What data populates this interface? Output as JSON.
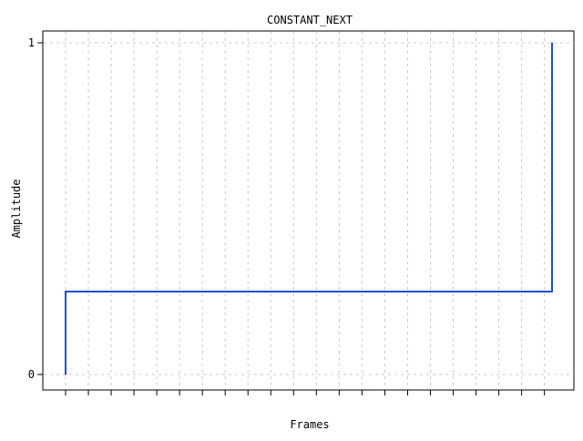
{
  "chart_data": {
    "type": "line",
    "title": "CONSTANT_NEXT",
    "xlabel": "Frames",
    "ylabel": "Amplitude",
    "ylim": [
      0,
      1
    ],
    "xlim": [
      0,
      1024
    ],
    "yticks": [
      0,
      1
    ],
    "ytick_labels": [
      "0",
      "1"
    ],
    "xticks": [
      0,
      48,
      96,
      144,
      192,
      240,
      288,
      336,
      384,
      432,
      480,
      528,
      576,
      624,
      672,
      720,
      768,
      816,
      864,
      912,
      960,
      1008
    ],
    "grid": true,
    "legend": "none",
    "series": [
      {
        "color": "#1f4fd6",
        "step": "post",
        "x": [
          0,
          0,
          1024
        ],
        "y": [
          0,
          0.25,
          1
        ]
      }
    ]
  }
}
